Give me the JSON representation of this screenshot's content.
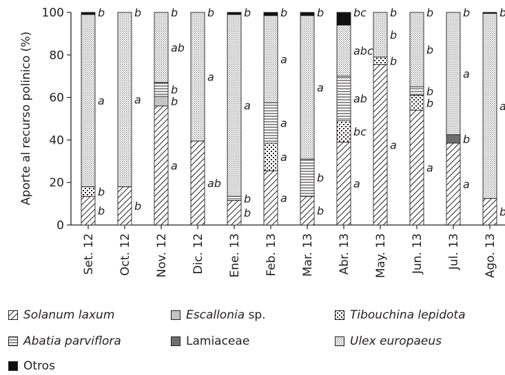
{
  "chart_data": {
    "type": "bar",
    "stacked": true,
    "ylabel": "Aporte al recurso polinico (%)",
    "ylim": [
      0,
      100
    ],
    "yticks": [
      0,
      20,
      40,
      60,
      80,
      100
    ],
    "categories": [
      "Set. 12",
      "Oct. 12",
      "Nov. 12",
      "Dic. 12",
      "Ene. 13",
      "Feb. 13",
      "Mar. 13",
      "Abr. 13",
      "May. 13",
      "Jun. 13",
      "Jul. 13",
      "Ago. 13"
    ],
    "series": [
      {
        "name": "Solanum laxum",
        "pattern": "diagonal-hatch",
        "values": [
          13.5,
          18,
          56,
          39.5,
          11.5,
          25.5,
          13.5,
          39,
          75.5,
          54,
          38.5,
          12.5
        ],
        "letters": [
          "b",
          "b",
          "a",
          "ab",
          "b",
          "a",
          "b",
          "a",
          "a",
          "a",
          "a",
          "b"
        ]
      },
      {
        "name": "Escallonia sp.",
        "pattern": "light-gray",
        "values": [
          0,
          0,
          4.5,
          0,
          0,
          0,
          0,
          0,
          0,
          0,
          0,
          0
        ],
        "letters": [
          "",
          "",
          "b",
          "",
          "",
          "",
          "",
          "",
          "",
          "",
          "",
          ""
        ]
      },
      {
        "name": "Tibouchina lepidota",
        "pattern": "dots",
        "values": [
          4.5,
          0,
          0,
          0,
          0,
          13,
          0,
          10,
          3.5,
          7,
          0,
          0
        ],
        "letters": [
          "b",
          "",
          "",
          "",
          "",
          "a",
          "",
          "bc",
          "b",
          "b",
          "",
          ""
        ]
      },
      {
        "name": "Abatia parviflora",
        "pattern": "horizontal-lines",
        "values": [
          0,
          0,
          6.5,
          0,
          2,
          19,
          17.5,
          21,
          0,
          4,
          0,
          0
        ],
        "letters": [
          "",
          "",
          "b",
          "",
          "b",
          "a",
          "b",
          "ab",
          "",
          "b",
          "",
          ""
        ]
      },
      {
        "name": "Lamiaceae",
        "pattern": "dark-gray",
        "values": [
          0,
          0,
          0,
          0,
          0,
          0,
          0,
          0,
          0,
          0,
          4,
          0
        ],
        "letters": [
          "",
          "",
          "",
          "",
          "",
          "",
          "",
          "",
          "",
          "",
          "b",
          ""
        ]
      },
      {
        "name": "Ulex europaeus",
        "pattern": "stipple",
        "values": [
          81,
          82,
          33,
          60.5,
          85.5,
          41,
          67.5,
          24,
          21,
          35,
          57.5,
          87
        ],
        "letters": [
          "a",
          "a",
          "ab",
          "a",
          "a",
          "a",
          "a",
          "abc",
          "b",
          "b",
          "a",
          "a"
        ]
      },
      {
        "name": "Otros",
        "pattern": "black",
        "values": [
          1,
          0,
          0,
          0,
          1,
          1.5,
          1.5,
          6,
          0,
          0,
          0,
          0.5
        ],
        "letters": [
          "b",
          "b",
          "b",
          "b",
          "b",
          "b",
          "b",
          "bc",
          "b",
          "b",
          "b",
          "b"
        ]
      }
    ],
    "legend_rows": [
      [
        "Solanum laxum",
        "Escallonia sp.",
        "Tibouchina lepidota"
      ],
      [
        "Abatia parviflora",
        "Lamiaceae",
        "Ulex europaeus"
      ],
      [
        "Otros"
      ]
    ]
  },
  "legend": {
    "solanum": {
      "label": "Solanum laxum"
    },
    "escallonia": {
      "label_italic": "Escallonia",
      "label_rest": " sp."
    },
    "tibouchina": {
      "label": "Tibouchina lepidota"
    },
    "abatia": {
      "label": "Abatia parviflora"
    },
    "lamiaceae": {
      "label": "Lamiaceae"
    },
    "ulex": {
      "label": "Ulex europaeus"
    },
    "otros": {
      "label": "Otros"
    }
  }
}
